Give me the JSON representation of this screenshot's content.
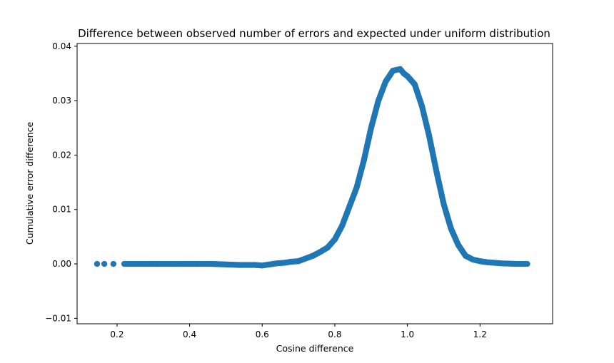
{
  "chart_data": {
    "type": "scatter",
    "title": "Difference between observed number of errors and expected under uniform distribution",
    "xlabel": "Cosine difference",
    "ylabel": "Cumulative error difference",
    "xlim": [
      0.09,
      1.4
    ],
    "ylim": [
      -0.011,
      0.0405
    ],
    "xticks": [
      0.2,
      0.4,
      0.6,
      0.8,
      1.0,
      1.2
    ],
    "xtick_labels": [
      "0.2",
      "0.4",
      "0.6",
      "0.8",
      "1.0",
      "1.2"
    ],
    "yticks": [
      -0.01,
      0.0,
      0.01,
      0.02,
      0.03,
      0.04
    ],
    "ytick_labels": [
      "−0.01",
      "0.00",
      "0.01",
      "0.02",
      "0.03",
      "0.04"
    ],
    "grid": false,
    "legend": "none",
    "marker_color": "#1f77b4",
    "series": [
      {
        "x": [
          0.145,
          0.165,
          0.19,
          0.22,
          0.26,
          0.3,
          0.34,
          0.38,
          0.42,
          0.46,
          0.5,
          0.54,
          0.58,
          0.6,
          0.62,
          0.64,
          0.66,
          0.68,
          0.7,
          0.72,
          0.74,
          0.76,
          0.78,
          0.8,
          0.82,
          0.84,
          0.86,
          0.88,
          0.9,
          0.92,
          0.94,
          0.96,
          0.98,
          0.99,
          1.0,
          1.02,
          1.04,
          1.06,
          1.08,
          1.1,
          1.12,
          1.14,
          1.16,
          1.18,
          1.2,
          1.22,
          1.26,
          1.3,
          1.33
        ],
        "y": [
          0.0,
          0.0,
          0.0,
          0.0,
          0.0,
          0.0,
          0.0,
          0.0,
          0.0,
          0.0,
          -0.0001,
          -0.0002,
          -0.0002,
          -0.0003,
          -0.0001,
          0.0001,
          0.0002,
          0.0004,
          0.0005,
          0.001,
          0.0015,
          0.0022,
          0.003,
          0.0045,
          0.007,
          0.0105,
          0.014,
          0.019,
          0.025,
          0.03,
          0.0335,
          0.0355,
          0.0358,
          0.035,
          0.0345,
          0.033,
          0.029,
          0.0235,
          0.017,
          0.011,
          0.0065,
          0.0035,
          0.0015,
          0.0008,
          0.0005,
          0.0003,
          0.0001,
          0.0,
          0.0
        ]
      }
    ]
  }
}
